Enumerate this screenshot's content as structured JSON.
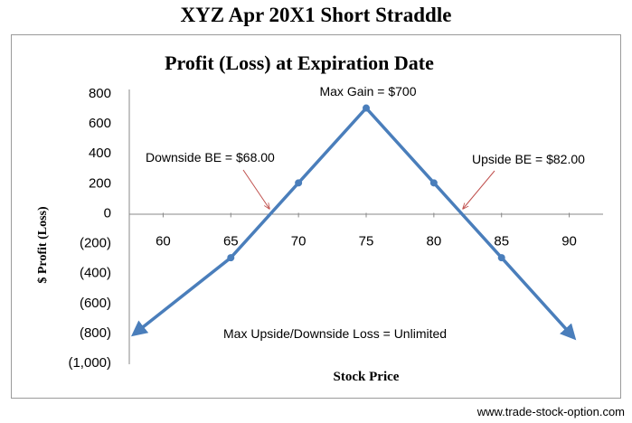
{
  "page": {
    "title": "XYZ Apr 20X1 Short Straddle",
    "watermark": "www.trade-stock-option.com"
  },
  "chart_data": {
    "type": "line",
    "title": "Profit (Loss) at Expiration Date",
    "xlabel": "Stock Price",
    "ylabel": "$ Profit (Loss)",
    "x_ticks": [
      60,
      65,
      70,
      75,
      80,
      85,
      90
    ],
    "y_ticks": [
      800,
      600,
      400,
      200,
      0,
      -200,
      -400,
      -600,
      -800,
      -1000
    ],
    "y_tick_labels": [
      "800",
      "600",
      "400",
      "200",
      "0",
      "(200)",
      "(400)",
      "(600)",
      "(800)",
      "(1,000)"
    ],
    "xlim": [
      57.5,
      92.5
    ],
    "ylim": [
      -1000,
      800
    ],
    "grid": false,
    "legend": "none",
    "series": [
      {
        "color": "#4a7ebb",
        "x": [
          58.0,
          65,
          70,
          75,
          80,
          85,
          90.2
        ],
        "y": [
          -800,
          -300,
          200,
          700,
          200,
          -300,
          -820
        ],
        "markers_x": [
          65,
          70,
          75,
          80,
          85
        ],
        "arrow_ends": true
      }
    ],
    "annotations": [
      {
        "text": "Max Gain = $700",
        "point": [
          75,
          700
        ]
      },
      {
        "text": "Downside BE = $68.00",
        "point": [
          68,
          0
        ]
      },
      {
        "text": "Upside BE = $82.00",
        "point": [
          82,
          0
        ]
      },
      {
        "text": "Max Upside/Downside Loss = Unlimited"
      }
    ],
    "annotation_arrow_color": "#c0504d"
  }
}
